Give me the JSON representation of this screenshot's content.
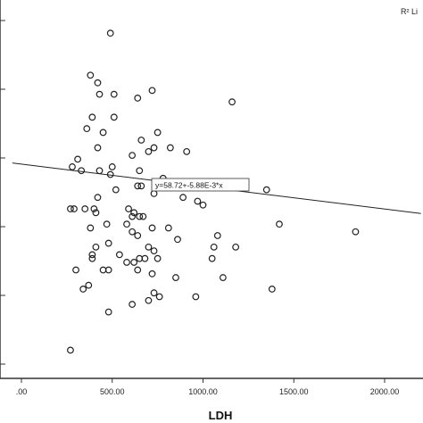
{
  "chart_data": {
    "type": "scatter",
    "title": "",
    "xlabel": "LDH",
    "ylabel": "",
    "xlim": [
      -50,
      2100
    ],
    "xticks": [
      0,
      500,
      1000,
      1500,
      2000
    ],
    "xtick_labels": [
      ".00",
      "500.00",
      "1000.00",
      "1500.00",
      "2000.00"
    ],
    "grid": false,
    "legend": {
      "position": "top-right",
      "label": "R² Li"
    },
    "fit_equation": "y=58.72+-5.88E-3*x",
    "fit_line": {
      "intercept": 58.72,
      "slope": -0.00588
    },
    "points": [
      {
        "x": 490,
        "y": 93
      },
      {
        "x": 380,
        "y": 82
      },
      {
        "x": 420,
        "y": 80
      },
      {
        "x": 720,
        "y": 78
      },
      {
        "x": 510,
        "y": 77
      },
      {
        "x": 430,
        "y": 77
      },
      {
        "x": 640,
        "y": 76
      },
      {
        "x": 1160,
        "y": 75
      },
      {
        "x": 390,
        "y": 71
      },
      {
        "x": 510,
        "y": 71
      },
      {
        "x": 360,
        "y": 68
      },
      {
        "x": 450,
        "y": 67
      },
      {
        "x": 750,
        "y": 67
      },
      {
        "x": 660,
        "y": 65
      },
      {
        "x": 420,
        "y": 63
      },
      {
        "x": 730,
        "y": 63
      },
      {
        "x": 820,
        "y": 63
      },
      {
        "x": 700,
        "y": 62
      },
      {
        "x": 910,
        "y": 62
      },
      {
        "x": 610,
        "y": 61
      },
      {
        "x": 310,
        "y": 60
      },
      {
        "x": 280,
        "y": 58
      },
      {
        "x": 500,
        "y": 58
      },
      {
        "x": 430,
        "y": 57
      },
      {
        "x": 330,
        "y": 57
      },
      {
        "x": 650,
        "y": 57
      },
      {
        "x": 490,
        "y": 56
      },
      {
        "x": 780,
        "y": 55
      },
      {
        "x": 640,
        "y": 53
      },
      {
        "x": 900,
        "y": 54
      },
      {
        "x": 940,
        "y": 54
      },
      {
        "x": 960,
        "y": 53
      },
      {
        "x": 660,
        "y": 53
      },
      {
        "x": 1020,
        "y": 54
      },
      {
        "x": 520,
        "y": 52
      },
      {
        "x": 730,
        "y": 51
      },
      {
        "x": 1350,
        "y": 52
      },
      {
        "x": 890,
        "y": 50
      },
      {
        "x": 420,
        "y": 50
      },
      {
        "x": 970,
        "y": 49
      },
      {
        "x": 1000,
        "y": 48
      },
      {
        "x": 270,
        "y": 47
      },
      {
        "x": 290,
        "y": 47
      },
      {
        "x": 350,
        "y": 47
      },
      {
        "x": 400,
        "y": 47
      },
      {
        "x": 590,
        "y": 47
      },
      {
        "x": 410,
        "y": 46
      },
      {
        "x": 620,
        "y": 46
      },
      {
        "x": 610,
        "y": 45
      },
      {
        "x": 650,
        "y": 45
      },
      {
        "x": 670,
        "y": 45
      },
      {
        "x": 1420,
        "y": 43
      },
      {
        "x": 470,
        "y": 43
      },
      {
        "x": 580,
        "y": 43
      },
      {
        "x": 720,
        "y": 42
      },
      {
        "x": 380,
        "y": 42
      },
      {
        "x": 810,
        "y": 42
      },
      {
        "x": 1840,
        "y": 41
      },
      {
        "x": 610,
        "y": 41
      },
      {
        "x": 640,
        "y": 40
      },
      {
        "x": 1080,
        "y": 40
      },
      {
        "x": 860,
        "y": 39
      },
      {
        "x": 480,
        "y": 38
      },
      {
        "x": 1060,
        "y": 37
      },
      {
        "x": 1180,
        "y": 37
      },
      {
        "x": 410,
        "y": 37
      },
      {
        "x": 700,
        "y": 37
      },
      {
        "x": 730,
        "y": 36
      },
      {
        "x": 390,
        "y": 35
      },
      {
        "x": 540,
        "y": 35
      },
      {
        "x": 680,
        "y": 34
      },
      {
        "x": 650,
        "y": 34
      },
      {
        "x": 620,
        "y": 33
      },
      {
        "x": 750,
        "y": 34
      },
      {
        "x": 390,
        "y": 34
      },
      {
        "x": 1050,
        "y": 34
      },
      {
        "x": 580,
        "y": 33
      },
      {
        "x": 300,
        "y": 31
      },
      {
        "x": 450,
        "y": 31
      },
      {
        "x": 480,
        "y": 31
      },
      {
        "x": 640,
        "y": 31
      },
      {
        "x": 720,
        "y": 30
      },
      {
        "x": 850,
        "y": 29
      },
      {
        "x": 1110,
        "y": 29
      },
      {
        "x": 370,
        "y": 27
      },
      {
        "x": 340,
        "y": 26
      },
      {
        "x": 1380,
        "y": 26
      },
      {
        "x": 730,
        "y": 25
      },
      {
        "x": 760,
        "y": 24
      },
      {
        "x": 960,
        "y": 24
      },
      {
        "x": 700,
        "y": 23
      },
      {
        "x": 610,
        "y": 22
      },
      {
        "x": 480,
        "y": 20
      },
      {
        "x": 270,
        "y": 10
      }
    ]
  }
}
